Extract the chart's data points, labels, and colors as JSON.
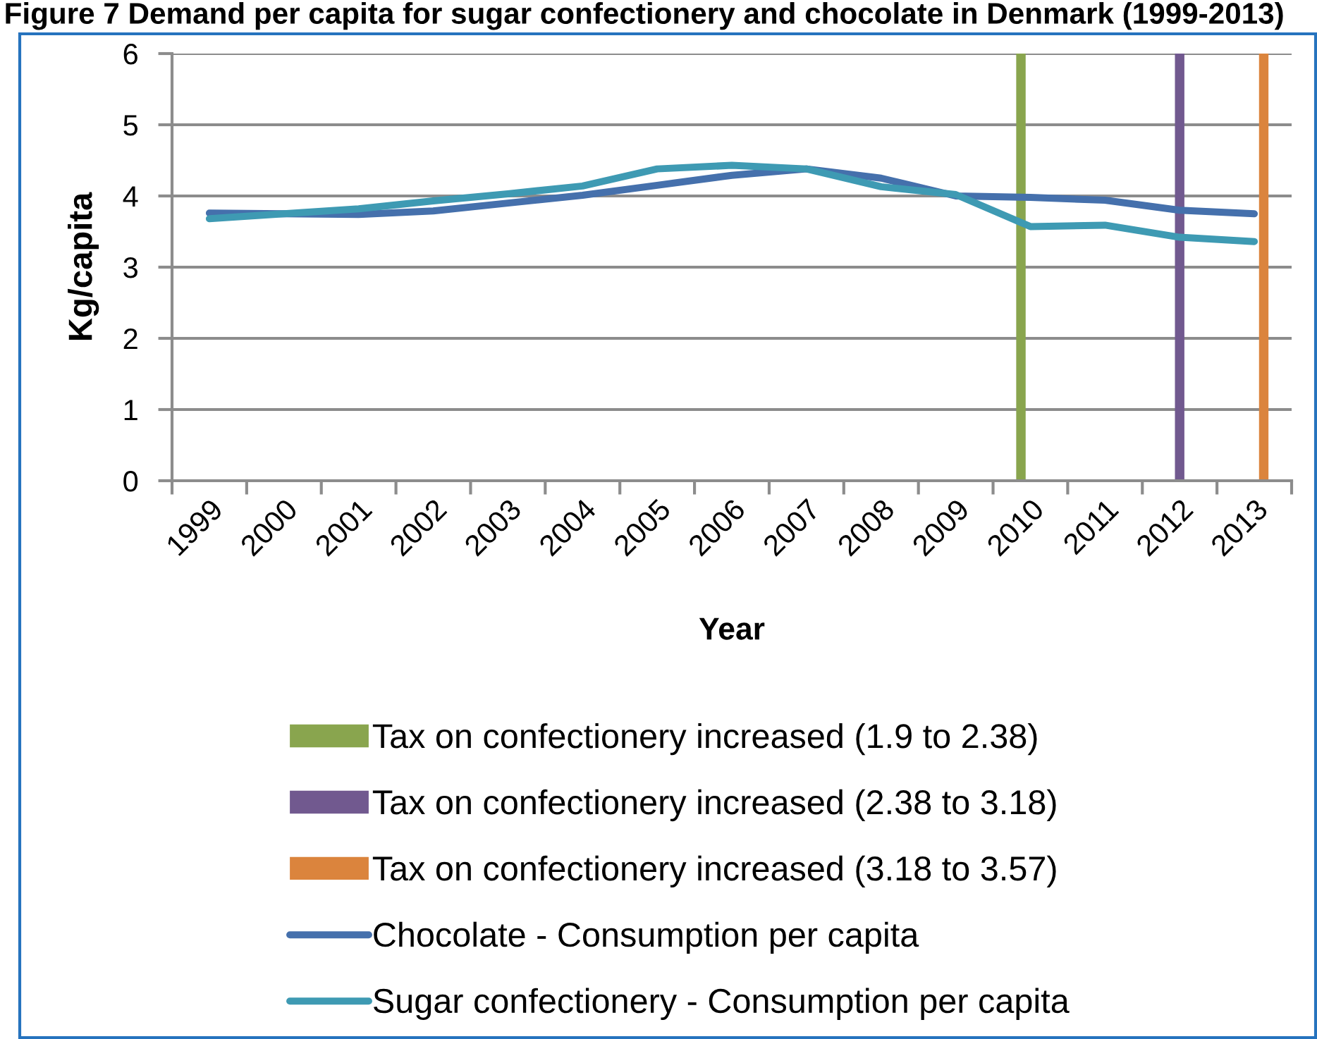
{
  "chart_data": {
    "type": "line",
    "title": "Figure 7 Demand per capita for sugar confectionery and chocolate in Denmark (1999-2013)",
    "xlabel": "Year",
    "ylabel": "Kg/capita",
    "categories": [
      "1999",
      "2000",
      "2001",
      "2002",
      "2003",
      "2004",
      "2005",
      "2006",
      "2007",
      "2008",
      "2009",
      "2010",
      "2011",
      "2012",
      "2013"
    ],
    "ylim": [
      0,
      6
    ],
    "yticks": [
      0,
      1,
      2,
      3,
      4,
      5,
      6
    ],
    "grid": "y",
    "legend": "bottom",
    "series": [
      {
        "name": "Tax on confectionery increased (1.9 to 2.38)",
        "type": "bar",
        "color": "#89a54e",
        "values": [
          null,
          null,
          null,
          null,
          null,
          null,
          null,
          null,
          null,
          null,
          null,
          6,
          null,
          null,
          null
        ]
      },
      {
        "name": "Tax on confectionery increased (2.38 to 3.18)",
        "type": "bar",
        "color": "#71598f",
        "values": [
          null,
          null,
          null,
          null,
          null,
          null,
          null,
          null,
          null,
          null,
          null,
          null,
          null,
          6,
          null
        ]
      },
      {
        "name": "Tax on confectionery increased (3.18 to 3.57)",
        "type": "bar",
        "color": "#db843d",
        "values": [
          null,
          null,
          null,
          null,
          null,
          null,
          null,
          null,
          null,
          null,
          null,
          null,
          null,
          null,
          6
        ]
      },
      {
        "name": "Chocolate - Consumption per capita",
        "color": "#4570ac",
        "values": [
          3.76,
          3.75,
          3.74,
          3.79,
          3.9,
          4.01,
          4.15,
          4.29,
          4.38,
          4.25,
          4.0,
          3.98,
          3.94,
          3.8,
          3.75
        ]
      },
      {
        "name": "Sugar confectionery - Consumption per capita",
        "color": "#3e9ab3",
        "values": [
          3.68,
          3.75,
          3.82,
          3.93,
          4.03,
          4.14,
          4.38,
          4.43,
          4.38,
          4.13,
          4.02,
          3.57,
          3.59,
          3.42,
          3.36
        ]
      }
    ]
  }
}
